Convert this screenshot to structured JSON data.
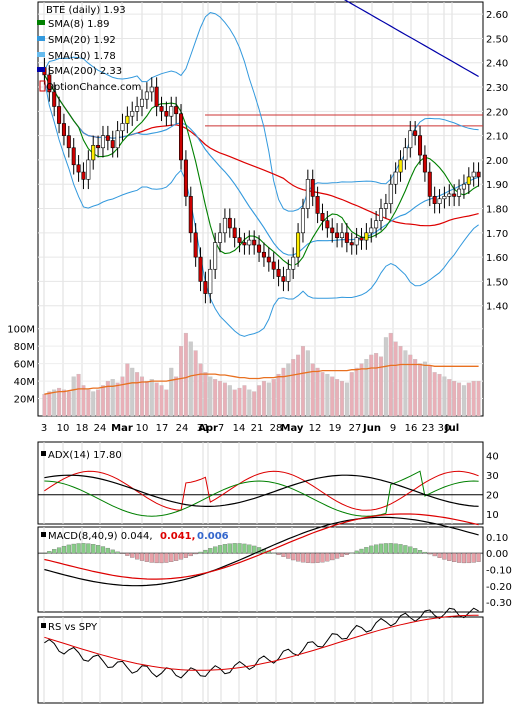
{
  "chart_data": [
    {
      "type": "candlestick",
      "ticker_label": "BTE (daily) 1.93",
      "watermark": "OptionChance.com",
      "legend": [
        {
          "label": "SMA(8) 1.89",
          "color": "#008000"
        },
        {
          "label": "SMA(20) 1.92",
          "color": "#3399dd"
        },
        {
          "label": "SMA(50) 1.78",
          "color": "#66bbee"
        },
        {
          "label": "SMA(200) 2.33",
          "color": "#0000aa"
        }
      ],
      "y_ticks": [
        "2.60",
        "2.50",
        "2.40",
        "2.30",
        "2.20",
        "2.10",
        "2.00",
        "1.90",
        "1.80",
        "1.70",
        "1.60",
        "1.50",
        "1.40"
      ],
      "ylim": [
        1.3,
        2.65
      ],
      "hlines": [
        2.185,
        2.14
      ],
      "volume_ticks": [
        "100M",
        "80M",
        "60M",
        "40M",
        "20M"
      ],
      "volume_max": 110,
      "x_ticks": [
        "3",
        "10",
        "18",
        "24",
        "Mar",
        "10",
        "17",
        "24",
        "31",
        "Apr",
        "7",
        "14",
        "21",
        "28",
        "May",
        "12",
        "19",
        "27",
        "Jun",
        "9",
        "16",
        "23",
        "30",
        "Jul"
      ],
      "x_bold_ticks": [
        "Mar",
        "Apr",
        "May",
        "Jun",
        "Jul"
      ],
      "colors": {
        "up": "#ffffff",
        "down": "#cc0000",
        "up_alt": "#ffee00",
        "wick": "#000000",
        "sma8": "#008000",
        "sma20": "#3399dd",
        "sma50": "#66bbee",
        "sma200": "#0000aa",
        "red_ma": "#dd0000",
        "bollinger": "#3399dd",
        "volume_up": "#e8b0b8",
        "volume_gray": "#cccccc",
        "volume_ma": "#e87020"
      },
      "closes": [
        2.35,
        2.28,
        2.22,
        2.15,
        2.1,
        2.05,
        1.98,
        1.95,
        1.92,
        2.0,
        2.06,
        2.05,
        2.1,
        2.08,
        2.05,
        2.12,
        2.15,
        2.18,
        2.2,
        2.22,
        2.25,
        2.28,
        2.3,
        2.22,
        2.2,
        2.18,
        2.22,
        2.19,
        2.0,
        1.85,
        1.7,
        1.6,
        1.5,
        1.45,
        1.55,
        1.66,
        1.7,
        1.76,
        1.72,
        1.68,
        1.66,
        1.65,
        1.67,
        1.65,
        1.62,
        1.6,
        1.58,
        1.55,
        1.52,
        1.5,
        1.55,
        1.6,
        1.7,
        1.8,
        1.92,
        1.85,
        1.78,
        1.75,
        1.72,
        1.7,
        1.68,
        1.7,
        1.66,
        1.65,
        1.68,
        1.67,
        1.7,
        1.72,
        1.75,
        1.8,
        1.82,
        1.9,
        1.95,
        2.0,
        2.05,
        2.12,
        2.1,
        2.02,
        1.95,
        1.85,
        1.82,
        1.84,
        1.85,
        1.86,
        1.85,
        1.88,
        1.9,
        1.93,
        1.95,
        1.93
      ],
      "volumes": [
        25,
        28,
        30,
        32,
        30,
        28,
        45,
        48,
        35,
        30,
        28,
        30,
        35,
        40,
        42,
        38,
        45,
        60,
        55,
        50,
        45,
        40,
        42,
        38,
        35,
        30,
        55,
        45,
        80,
        95,
        85,
        75,
        60,
        50,
        45,
        42,
        40,
        38,
        35,
        30,
        32,
        35,
        30,
        28,
        35,
        40,
        38,
        42,
        48,
        55,
        60,
        65,
        70,
        80,
        75,
        60,
        55,
        50,
        48,
        45,
        42,
        40,
        38,
        50,
        55,
        60,
        65,
        70,
        72,
        68,
        90,
        95,
        85,
        80,
        75,
        70,
        65,
        60,
        62,
        58,
        50,
        48,
        45,
        42,
        40,
        38,
        35,
        38,
        40,
        40
      ],
      "volume_ma": [
        25,
        26,
        27,
        28,
        28,
        29,
        30,
        31,
        31,
        31,
        32,
        32,
        33,
        34,
        34,
        35,
        36,
        37,
        38,
        38,
        39,
        39,
        40,
        40,
        40,
        40,
        41,
        42,
        43,
        44,
        46,
        47,
        48,
        48,
        48,
        48,
        47,
        47,
        46,
        45,
        44,
        44,
        43,
        43,
        43,
        44,
        44,
        44,
        45,
        45,
        46,
        47,
        48,
        49,
        50,
        51,
        51,
        52,
        52,
        52,
        52,
        52,
        52,
        53,
        53,
        54,
        54,
        55,
        55,
        56,
        57,
        58,
        58,
        59,
        59,
        59,
        59,
        59,
        58,
        58,
        57,
        57,
        57,
        57,
        57,
        57,
        57,
        57,
        57,
        57
      ]
    },
    {
      "type": "line",
      "label": "ADX(14) 17.80",
      "y_ticks": [
        "40",
        "30",
        "20",
        "10"
      ],
      "ylim": [
        5,
        47
      ],
      "ref_line": 20,
      "colors": {
        "adx": "#000000",
        "plus_di": "#008000",
        "minus_di": "#dd0000"
      }
    },
    {
      "type": "line",
      "label": "MACD(8,40,9) 0.044,",
      "value_red": "0.041,",
      "value_blue": "0.006",
      "y_ticks": [
        "0.10",
        "0.00",
        "-0.10",
        "-0.20",
        "-0.30"
      ],
      "ylim": [
        -0.36,
        0.16
      ],
      "colors": {
        "macd": "#000000",
        "signal": "#dd0000",
        "hist_pos": "#88cc88",
        "hist_neg": "#e8a0a8"
      }
    },
    {
      "type": "line",
      "label": "RS vs SPY",
      "colors": {
        "rs": "#000000",
        "rs_ma": "#dd0000"
      }
    }
  ]
}
